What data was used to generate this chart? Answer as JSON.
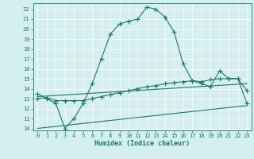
{
  "title": "",
  "xlabel": "Humidex (Indice chaleur)",
  "bg_color": "#d5eeee",
  "line_color": "#1a7a6e",
  "xlim": [
    -0.5,
    23.5
  ],
  "ylim": [
    9.8,
    22.6
  ],
  "yticks": [
    10,
    11,
    12,
    13,
    14,
    15,
    16,
    17,
    18,
    19,
    20,
    21,
    22
  ],
  "xticks": [
    0,
    1,
    2,
    3,
    4,
    5,
    6,
    7,
    8,
    9,
    10,
    11,
    12,
    13,
    14,
    15,
    16,
    17,
    18,
    19,
    20,
    21,
    22,
    23
  ],
  "curve1_x": [
    0,
    1,
    2,
    3,
    4,
    5,
    6,
    7,
    8,
    9,
    10,
    11,
    12,
    13,
    14,
    15,
    16,
    17,
    18,
    19,
    20,
    21,
    22,
    23
  ],
  "curve1_y": [
    13.5,
    13.0,
    12.5,
    10.0,
    11.0,
    12.5,
    14.5,
    17.0,
    19.5,
    20.5,
    20.8,
    21.0,
    22.2,
    22.0,
    21.2,
    19.7,
    16.5,
    14.8,
    14.5,
    14.2,
    15.8,
    15.0,
    15.0,
    13.8
  ],
  "curve2_x": [
    0,
    1,
    2,
    3,
    4,
    5,
    6,
    7,
    8,
    9,
    10,
    11,
    12,
    13,
    14,
    15,
    16,
    17,
    18,
    19,
    20,
    21,
    22,
    23
  ],
  "curve2_y": [
    13.0,
    13.1,
    12.8,
    12.8,
    12.8,
    12.8,
    13.0,
    13.2,
    13.4,
    13.6,
    13.8,
    14.0,
    14.2,
    14.3,
    14.5,
    14.6,
    14.7,
    14.8,
    14.7,
    14.9,
    15.0,
    15.0,
    15.0,
    12.5
  ],
  "curve3_x": [
    0,
    23
  ],
  "curve3_y": [
    10.0,
    12.3
  ],
  "curve4_x": [
    0,
    23
  ],
  "curve4_y": [
    13.2,
    14.5
  ]
}
